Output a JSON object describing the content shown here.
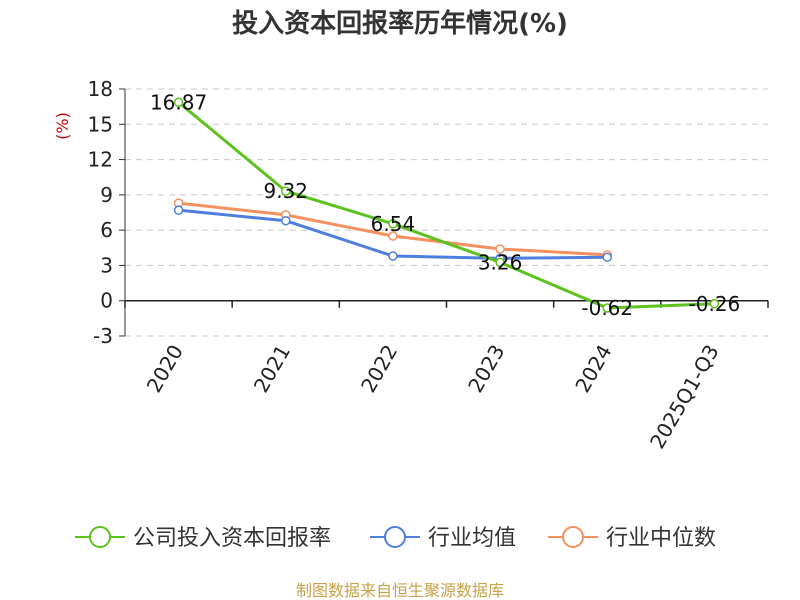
{
  "chart_data": {
    "type": "line",
    "title": "投入资本回报率历年情况(%)",
    "ylabel": "(%)",
    "categories": [
      "2020",
      "2021",
      "2022",
      "2023",
      "2024",
      "2025Q1-Q3"
    ],
    "ylim": [
      -3,
      18
    ],
    "yticks": [
      -3,
      0,
      3,
      6,
      9,
      12,
      15,
      18
    ],
    "grid": true,
    "legend_position": "bottom",
    "series": [
      {
        "name": "公司投入资本回报率",
        "color": "#5cc21e",
        "values": [
          16.87,
          9.32,
          6.54,
          3.26,
          -0.62,
          -0.26
        ],
        "labels": [
          "16.87",
          "9.32",
          "6.54",
          "3.26",
          "-0.62",
          "-0.26"
        ]
      },
      {
        "name": "行业均值",
        "color": "#4f7fdc",
        "values": [
          7.7,
          6.8,
          3.8,
          3.6,
          3.7,
          null
        ]
      },
      {
        "name": "行业中位数",
        "color": "#f4915f",
        "values": [
          8.3,
          7.3,
          5.5,
          4.4,
          3.9,
          null
        ]
      }
    ]
  },
  "source": "制图数据来自恒生聚源数据库"
}
